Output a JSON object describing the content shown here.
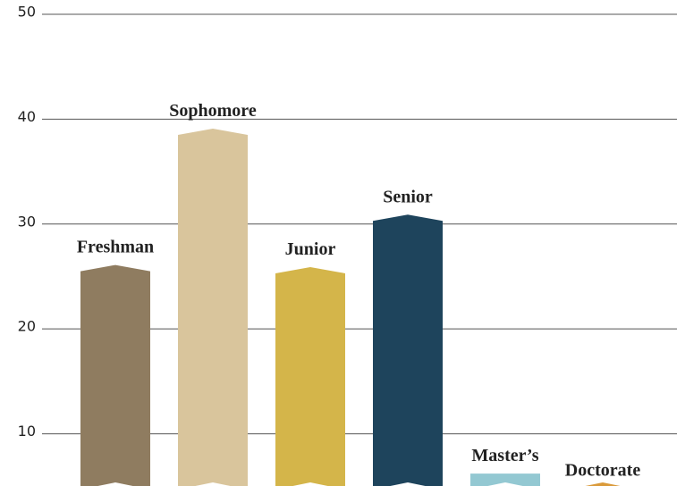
{
  "chart_data": {
    "type": "bar",
    "categories": [
      "Freshman",
      "Sophomore",
      "Junior",
      "Senior",
      "Master’s",
      "Doctorate"
    ],
    "values": [
      25.5,
      38.5,
      25.3,
      30.3,
      6.2,
      4.8
    ],
    "colors": [
      "#8f7c60",
      "#d9c59c",
      "#d4b54a",
      "#1e445c",
      "#93c8d2",
      "#da9a3a"
    ],
    "ylim": [
      4,
      50
    ],
    "yticks": [
      10,
      20,
      30,
      40,
      50
    ],
    "grid": true
  }
}
